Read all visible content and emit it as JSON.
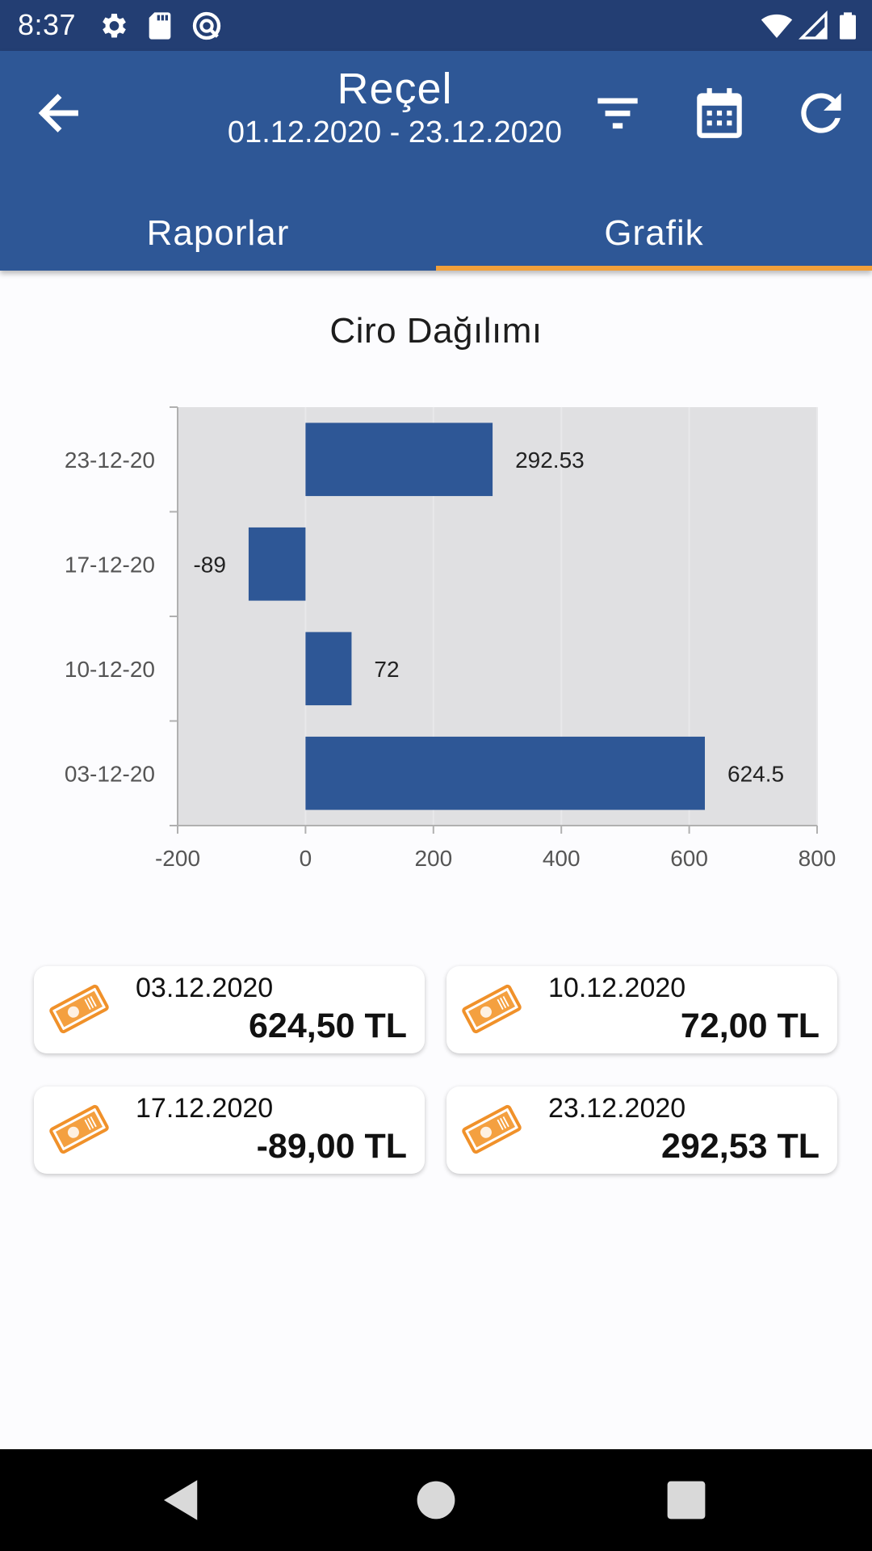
{
  "status_bar": {
    "time": "8:37",
    "icons": [
      "settings-icon",
      "sd-card-icon",
      "vpn-icon",
      "wifi-icon",
      "signal-icon",
      "battery-icon"
    ]
  },
  "header": {
    "title": "Reçel",
    "date_range": "01.12.2020 - 23.12.2020",
    "icons": [
      "back-arrow-icon",
      "filter-icon",
      "calendar-icon",
      "refresh-icon"
    ]
  },
  "tabs": [
    {
      "label": "Raporlar",
      "active": false
    },
    {
      "label": "Grafik",
      "active": true
    }
  ],
  "colors": {
    "primary": "#2e5796",
    "status_bar": "#233e73",
    "accent": "#f2a03a",
    "bar": "#2e5796",
    "plot_bg": "#e0e0e2"
  },
  "chart_data": {
    "type": "bar",
    "orientation": "horizontal",
    "title": "Ciro Dağılımı",
    "categories": [
      "03-12-20",
      "10-12-20",
      "17-12-20",
      "23-12-20"
    ],
    "values": [
      624.5,
      72,
      -89,
      292.53
    ],
    "value_labels": [
      "624.5",
      "72",
      "-89",
      "292.53"
    ],
    "xlim": [
      -200,
      800
    ],
    "x_ticks": [
      "-200",
      "0",
      "200",
      "400",
      "600",
      "800"
    ],
    "grid": true,
    "legend": "none"
  },
  "cards": [
    {
      "date": "03.12.2020",
      "amount": "624,50 TL"
    },
    {
      "date": "10.12.2020",
      "amount": "72,00 TL"
    },
    {
      "date": "17.12.2020",
      "amount": "-89,00 TL"
    },
    {
      "date": "23.12.2020",
      "amount": "292,53 TL"
    }
  ],
  "nav_bar": {
    "icons": [
      "back-triangle-icon",
      "home-circle-icon",
      "recents-square-icon"
    ]
  }
}
